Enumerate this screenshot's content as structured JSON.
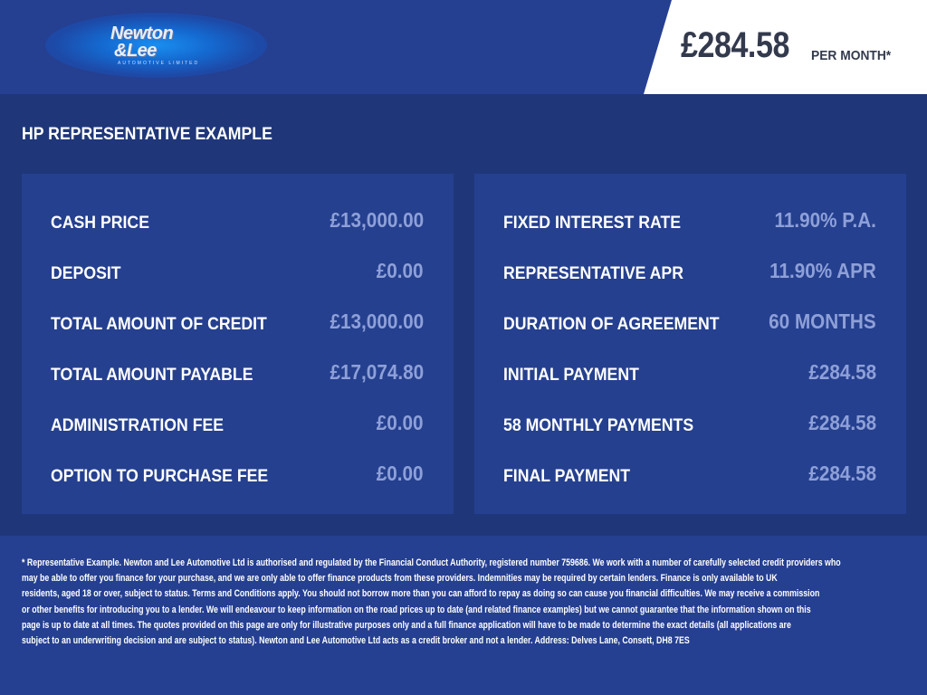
{
  "header": {
    "logo": {
      "text_line1": "Newton",
      "text_line2": "&Lee",
      "tagline": "AUTOMOTIVE LIMITED"
    },
    "price": "£284.58",
    "price_suffix": "PER MONTH*"
  },
  "main": {
    "title": "HP REPRESENTATIVE EXAMPLE",
    "left_panel": [
      {
        "label": "CASH PRICE",
        "value": "£13,000.00"
      },
      {
        "label": "DEPOSIT",
        "value": "£0.00"
      },
      {
        "label": "TOTAL AMOUNT OF CREDIT",
        "value": "£13,000.00"
      },
      {
        "label": "TOTAL AMOUNT PAYABLE",
        "value": "£17,074.80"
      },
      {
        "label": "ADMINISTRATION FEE",
        "value": "£0.00"
      },
      {
        "label": "OPTION TO PURCHASE FEE",
        "value": "£0.00"
      }
    ],
    "right_panel": [
      {
        "label": "FIXED INTEREST RATE",
        "value": "11.90% P.A."
      },
      {
        "label": "REPRESENTATIVE APR",
        "value": "11.90% APR"
      },
      {
        "label": "DURATION OF AGREEMENT",
        "value": "60 MONTHS"
      },
      {
        "label": "INITIAL PAYMENT",
        "value": "£284.58"
      },
      {
        "label": "58 MONTHLY PAYMENTS",
        "value": "£284.58"
      },
      {
        "label": "FINAL PAYMENT",
        "value": "£284.58"
      }
    ]
  },
  "footer": {
    "lines": [
      "* Representative Example. Newton and Lee Automotive Ltd is authorised and regulated by the Financial Conduct Authority, registered number 759686. We work with a number of carefully selected credit providers who",
      "may be able to offer you finance for your purchase, and we are only able to offer finance products from these providers. Indemnities may be required by certain lenders. Finance is only available to UK",
      "residents, aged 18 or over, subject to status. Terms and Conditions apply. You should not borrow more than you can afford to repay as doing so can cause you financial difficulties. We may receive a commission",
      "or other benefits for introducing you to a lender. We will endeavour to keep information on the road prices up to date (and related finance examples) but we cannot guarantee that the information shown on this",
      "page is up to date at all times. The quotes provided on this page are only for illustrative purposes only and a full finance application will have to be made to determine the exact details (all applications are",
      "subject to an underwriting decision and are subject to status). Newton and Lee Automotive Ltd acts as a credit broker and not a lender. Address: Delves Lane, Consett, DH8 7ES"
    ]
  },
  "colors": {
    "header_bg": "#253f91",
    "main_bg": "#1f3779",
    "panel_bg": "#25408f",
    "value_text": "#8ea0d8",
    "price_text": "#333a4d"
  }
}
